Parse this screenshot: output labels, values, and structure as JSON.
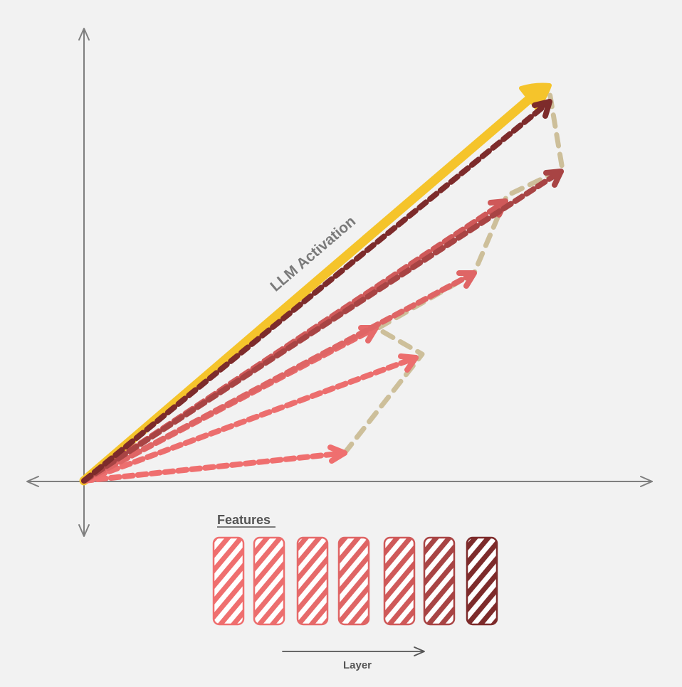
{
  "diagram": {
    "activation_label": "LLM Activation",
    "features_label": "Features",
    "layer_label": "Layer",
    "features_count": 7
  },
  "colors": {
    "background": "#f2f2f2",
    "axis": "#7f7f7f",
    "activation": "#f5c42b",
    "residual_path": "#cdbf9a",
    "text": "#7a7a7a",
    "layer_text": "#555555",
    "features": [
      "#ef6f6f",
      "#ec6e6e",
      "#e66a6a",
      "#df6565",
      "#cf5959",
      "#a84444",
      "#7d2b2b"
    ]
  }
}
